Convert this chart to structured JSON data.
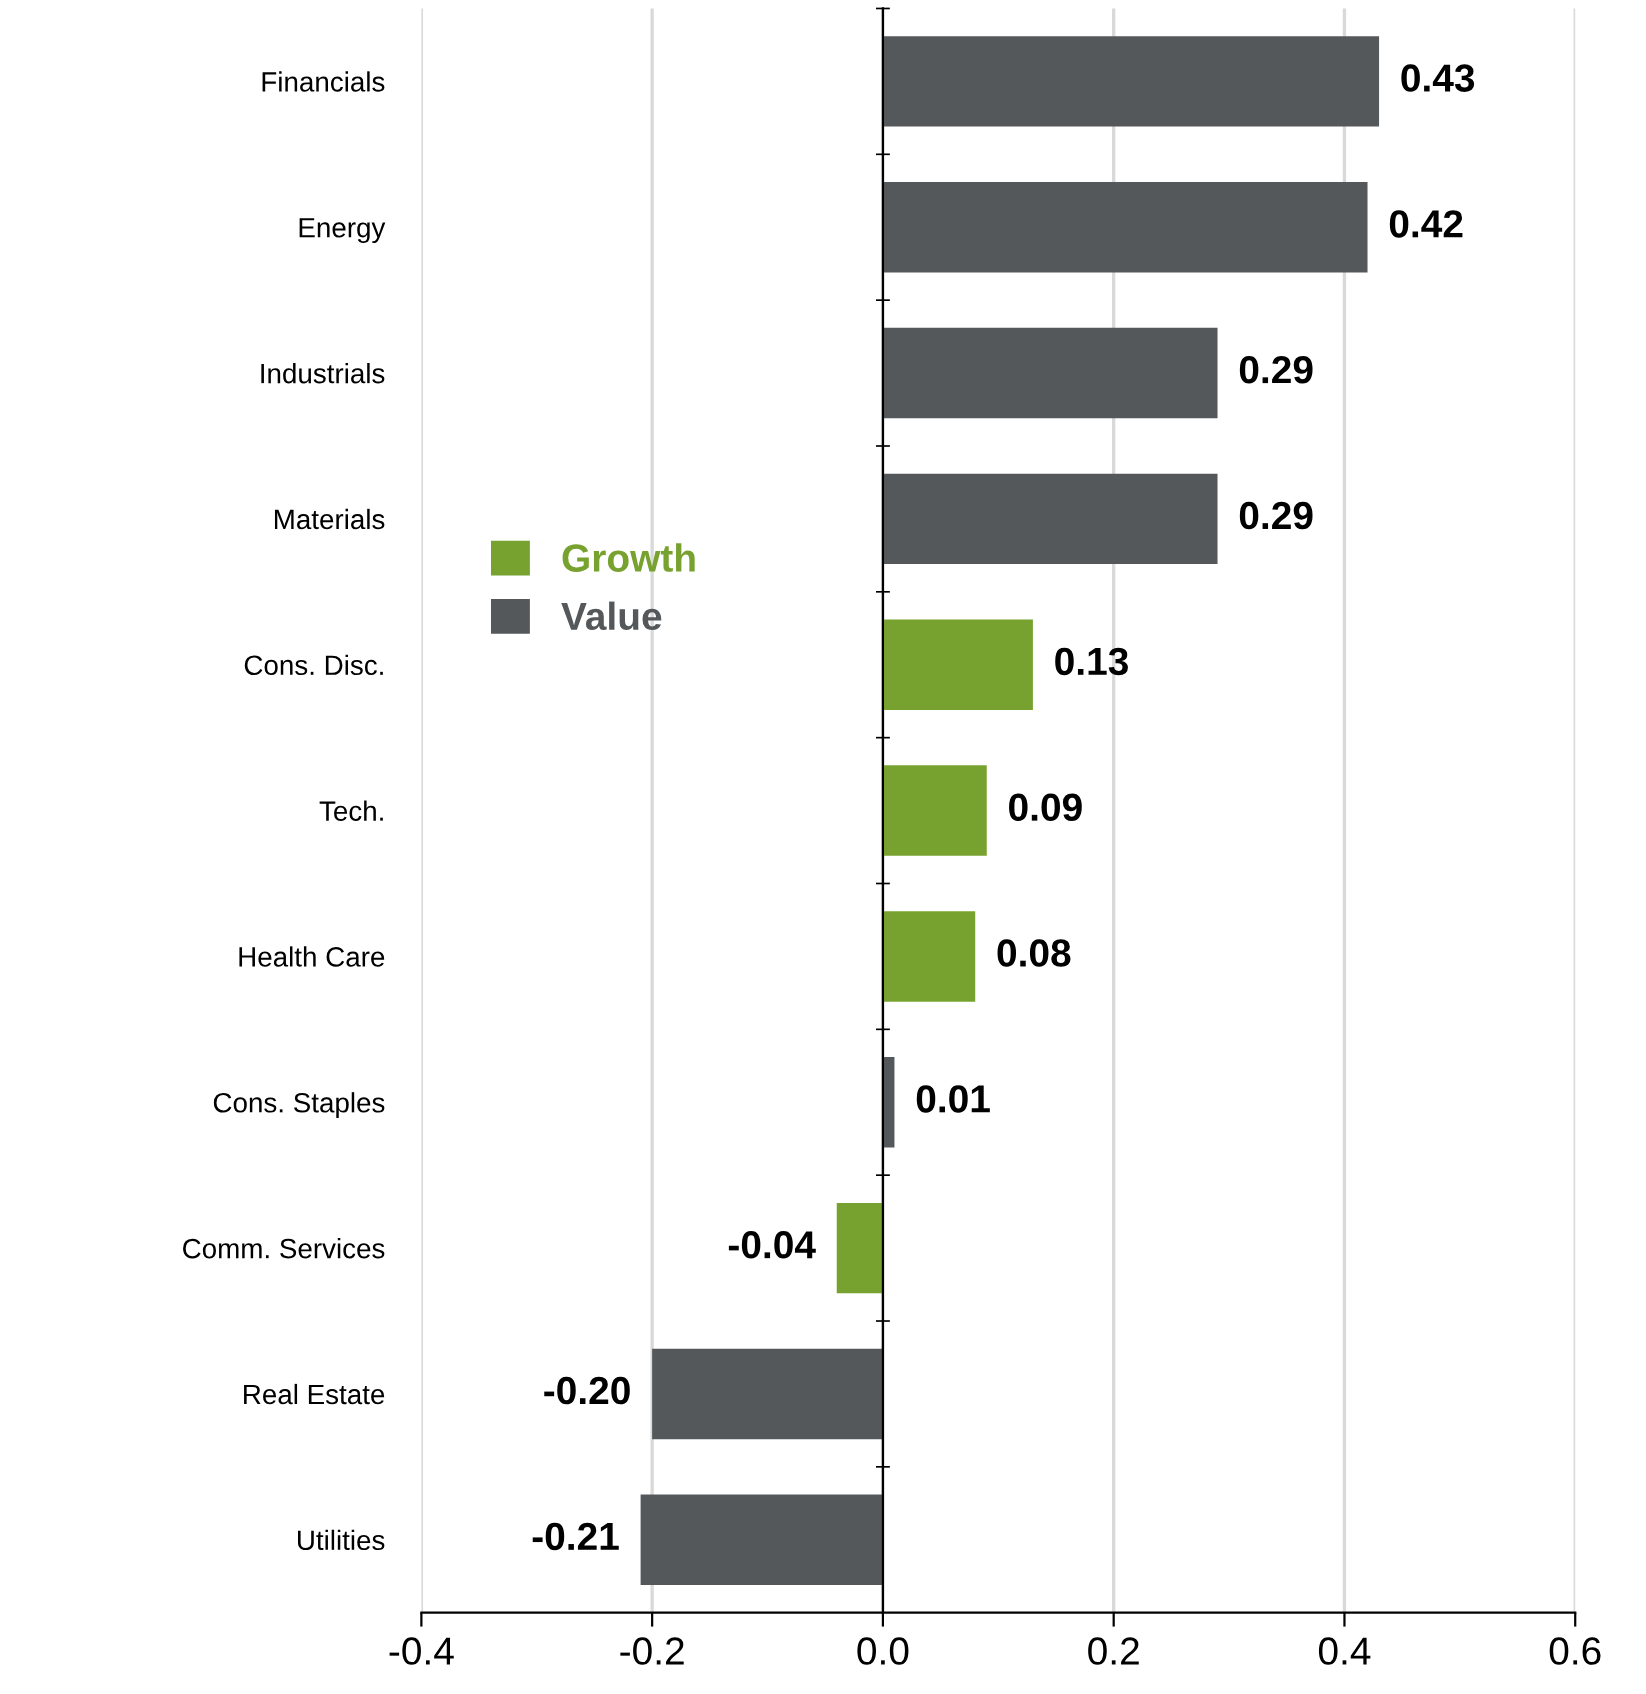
{
  "chart_data": {
    "type": "bar",
    "orientation": "horizontal",
    "stacked": true,
    "categories": [
      "Financials",
      "Energy",
      "Industrials",
      "Materials",
      "Cons. Disc.",
      "Tech.",
      "Health Care",
      "Cons. Staples",
      "Comm. Services",
      "Real Estate",
      "Utilities"
    ],
    "series": [
      {
        "name": "Growth",
        "color": "#78a22f",
        "values": [
          null,
          null,
          null,
          null,
          0.13,
          0.09,
          0.08,
          null,
          -0.04,
          null,
          null
        ],
        "value_labels": [
          null,
          null,
          null,
          null,
          "0.13",
          "0.09",
          "0.08",
          null,
          "-0.04",
          null,
          null
        ]
      },
      {
        "name": "Value",
        "color": "#54585a",
        "values": [
          0.43,
          0.42,
          0.29,
          0.29,
          null,
          null,
          null,
          0.01,
          null,
          -0.2,
          -0.21
        ],
        "value_labels": [
          "0.43",
          "0.42",
          "0.29",
          "0.29",
          null,
          null,
          null,
          "0.01",
          null,
          "-0.20",
          "-0.21"
        ]
      }
    ],
    "xlim": [
      -0.4,
      0.6
    ],
    "xticks": [
      -0.4,
      -0.2,
      {
        "value": 0,
        "label": "0.0"
      },
      0.2,
      0.4,
      0.6
    ],
    "grid": "x",
    "legend": "left"
  }
}
